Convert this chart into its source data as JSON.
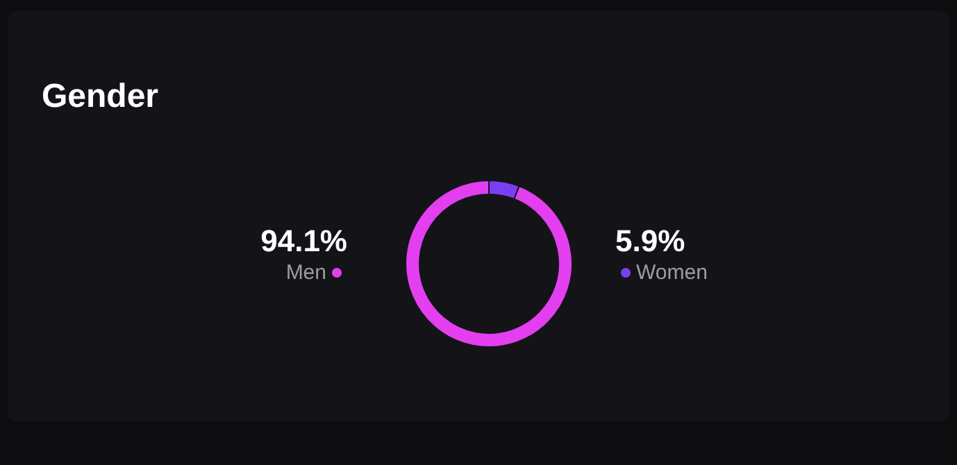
{
  "chart_data": {
    "type": "donut",
    "title": "Gender",
    "categories": [
      "Men",
      "Women"
    ],
    "values": [
      94.1,
      5.9
    ],
    "colors": [
      "#e33ff0",
      "#7a3ff5"
    ],
    "value_labels": [
      "94.1%",
      "5.9%"
    ]
  }
}
